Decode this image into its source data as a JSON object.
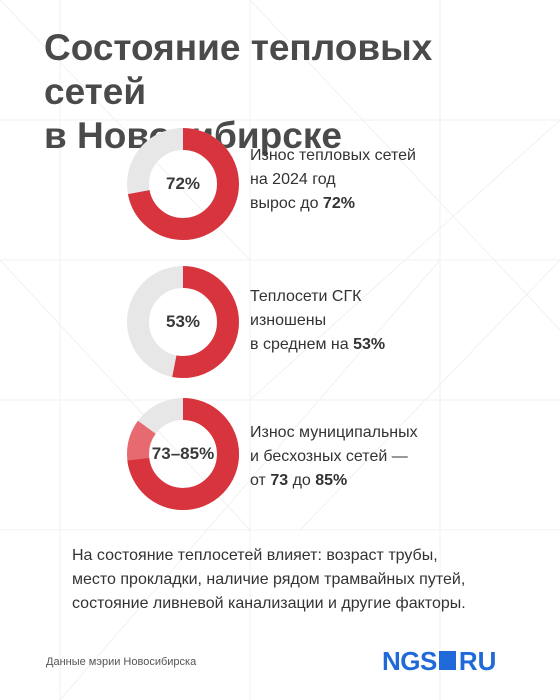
{
  "title_lines": [
    "Состояние тепловых сетей",
    "в Новосибирске"
  ],
  "colors": {
    "accent": "#d8343d",
    "accent_light": "#e86a71",
    "track": "#e7e7e7",
    "brand": "#1f6ad8"
  },
  "chart_data": [
    {
      "type": "pie",
      "center_label": "72%",
      "values": [
        72
      ],
      "caption": [
        {
          "text": "Износ тепловых сетей"
        },
        {
          "text": "на 2024 год"
        },
        {
          "text": "вырос до ",
          "bold": "72%"
        }
      ]
    },
    {
      "type": "pie",
      "center_label": "53%",
      "values": [
        53
      ],
      "caption": [
        {
          "text": "Теплосети СГК"
        },
        {
          "text": "изношены"
        },
        {
          "text": "в среднем на ",
          "bold": "53%"
        }
      ]
    },
    {
      "type": "pie",
      "center_label": "73–85%",
      "values": [
        73,
        85
      ],
      "caption": [
        {
          "text": "Износ муниципальных"
        },
        {
          "text": "и бесхозных сетей —"
        },
        {
          "text": "от ",
          "bold": "73",
          "text2": " до ",
          "bold2": "85%"
        }
      ]
    }
  ],
  "note_lines": [
    "На состояние теплосетей влияет: возраст трубы,",
    "место прокладки, наличие рядом трамвайных путей,",
    "состояние ливневой канализации и другие факторы."
  ],
  "source": "Данные мэрии Новосибирска",
  "logo": {
    "left": "NGS",
    "right": "RU"
  }
}
